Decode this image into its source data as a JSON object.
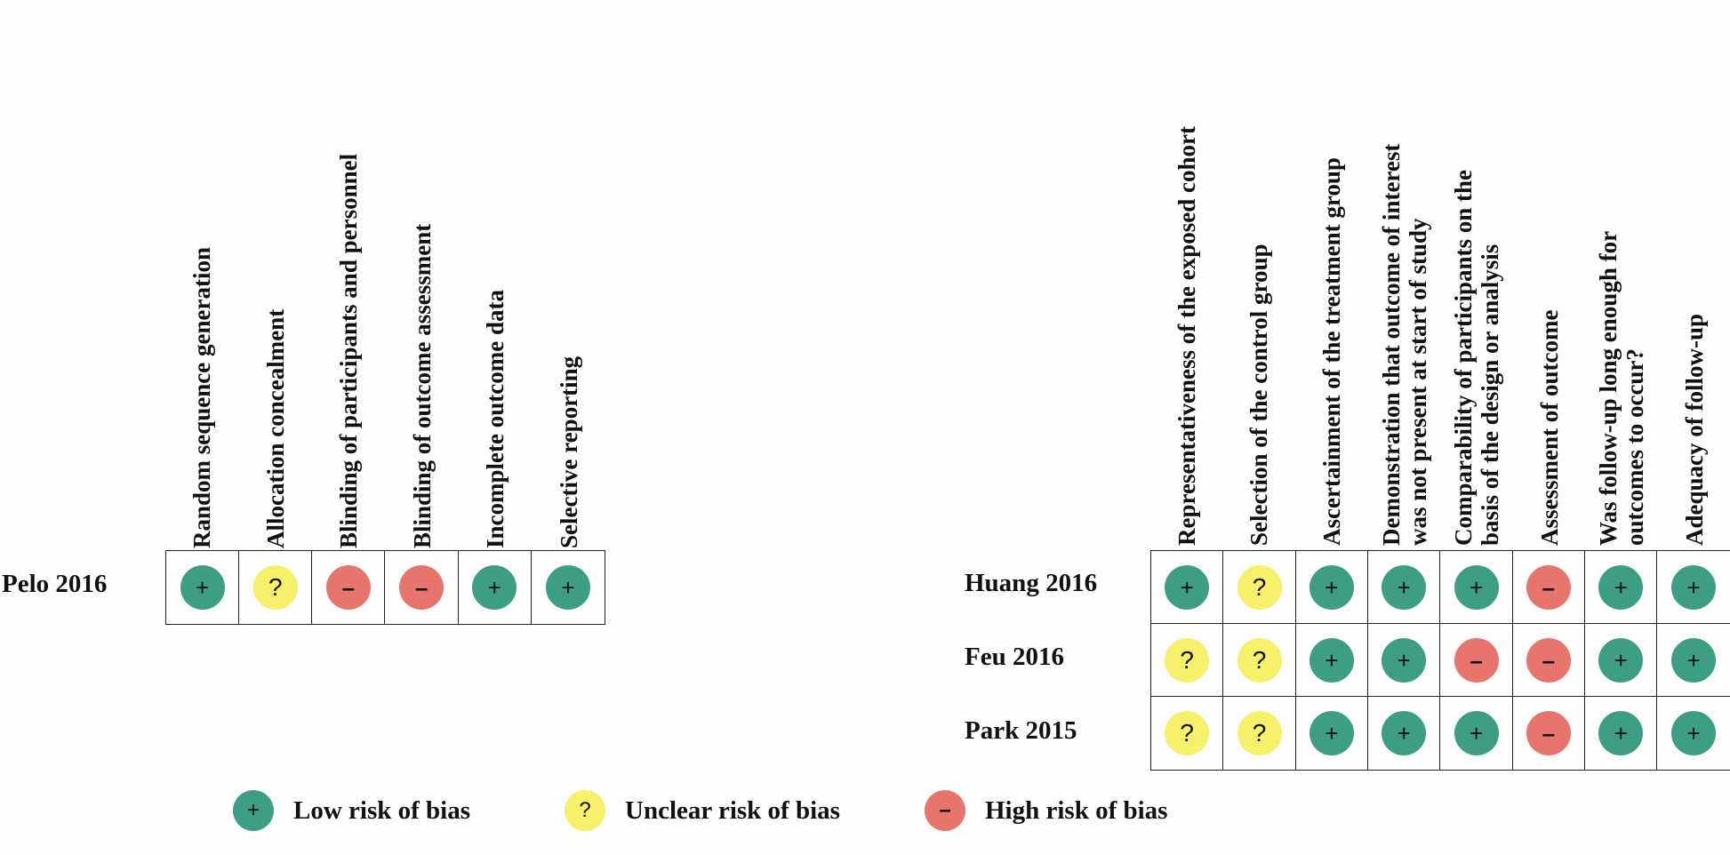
{
  "symbols": {
    "low": "+",
    "unclear": "?",
    "high": "–"
  },
  "colors": {
    "low": "#3d9e84",
    "unclear": "#f7f06a",
    "high": "#e8756c"
  },
  "left_table": {
    "columns": [
      [
        "Random sequence generation"
      ],
      [
        "Allocation concealment"
      ],
      [
        "Blinding of participants and personnel"
      ],
      [
        "Blinding of outcome assessment"
      ],
      [
        "Incomplete outcome data"
      ],
      [
        "Selective reporting"
      ]
    ],
    "rows": [
      {
        "study": "Pelo 2016",
        "ratings": [
          "low",
          "unclear",
          "high",
          "high",
          "low",
          "low"
        ]
      }
    ]
  },
  "right_table": {
    "columns": [
      [
        "Representativeness of the exposed cohort"
      ],
      [
        "Selection of the control group"
      ],
      [
        "Ascertainment of the treatment group"
      ],
      [
        "Demonstration that outcome of interest",
        "was not present at start of study"
      ],
      [
        "Comparability of participants on the",
        "basis of the design or analysis"
      ],
      [
        "Assessment of outcome"
      ],
      [
        "Was follow-up long enough for",
        "outcomes to occur?"
      ],
      [
        "Adequacy of follow-up"
      ]
    ],
    "rows": [
      {
        "study": "Huang 2016",
        "ratings": [
          "low",
          "unclear",
          "low",
          "low",
          "low",
          "high",
          "low",
          "low"
        ]
      },
      {
        "study": "Feu 2016",
        "ratings": [
          "unclear",
          "unclear",
          "low",
          "low",
          "high",
          "high",
          "low",
          "low"
        ]
      },
      {
        "study": "Park 2015",
        "ratings": [
          "unclear",
          "unclear",
          "low",
          "low",
          "low",
          "high",
          "low",
          "low"
        ]
      }
    ]
  },
  "legend": [
    {
      "key": "low",
      "label": "Low risk of bias"
    },
    {
      "key": "unclear",
      "label": "Unclear risk of bias"
    },
    {
      "key": "high",
      "label": "High risk of bias"
    }
  ]
}
